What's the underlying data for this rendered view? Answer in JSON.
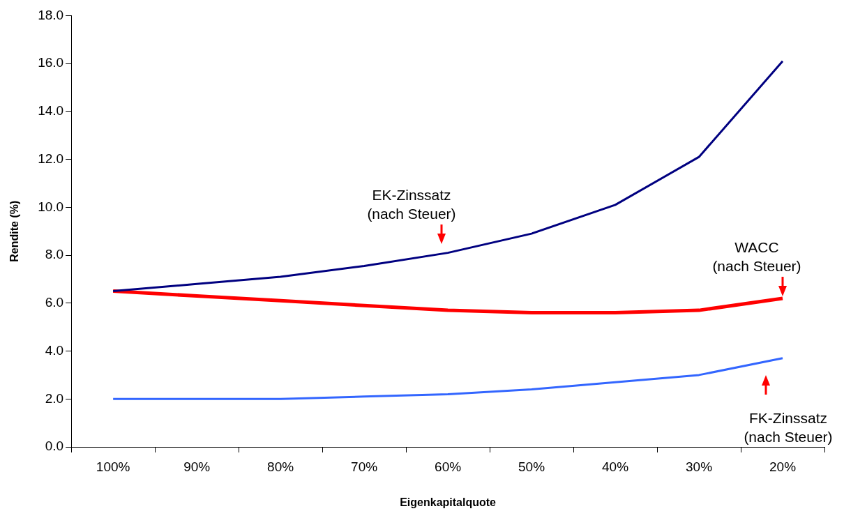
{
  "chart_data": {
    "type": "line",
    "xlabel": "Eigenkapitalquote",
    "ylabel": "Rendite (%)",
    "categories": [
      "100%",
      "90%",
      "80%",
      "70%",
      "60%",
      "50%",
      "40%",
      "30%",
      "20%"
    ],
    "series": [
      {
        "color": "#000080",
        "values": [
          6.5,
          6.8,
          7.1,
          7.55,
          8.1,
          8.9,
          10.1,
          12.1,
          16.1
        ]
      },
      {
        "color": "#ff0000",
        "values": [
          6.5,
          6.3,
          6.1,
          5.9,
          5.7,
          5.6,
          5.6,
          5.7,
          6.2
        ]
      },
      {
        "color": "#3366ff",
        "values": [
          2.0,
          2.0,
          2.0,
          2.1,
          2.2,
          2.4,
          2.7,
          3.0,
          3.7
        ]
      }
    ],
    "ylim": [
      0,
      18
    ],
    "yticks": [
      {
        "value": 0,
        "label": "0.0"
      },
      {
        "value": 2,
        "label": "2.0"
      },
      {
        "value": 4,
        "label": "4.0"
      },
      {
        "value": 6,
        "label": "6.0"
      },
      {
        "value": 8,
        "label": "8.0"
      },
      {
        "value": 10,
        "label": "10.0"
      },
      {
        "value": 12,
        "label": "12.0"
      },
      {
        "value": 14,
        "label": "14.0"
      },
      {
        "value": 16,
        "label": "16.0"
      },
      {
        "value": 18,
        "label": "18.0"
      }
    ],
    "grid": false,
    "legend": false,
    "marker": "none",
    "line_style": "solid",
    "annotations": [
      "EK-Zinssatz\n(nach Steuer)",
      "WACC\n(nach Steuer)",
      "FK-Zinssatz\n(nach Steuer)"
    ]
  }
}
